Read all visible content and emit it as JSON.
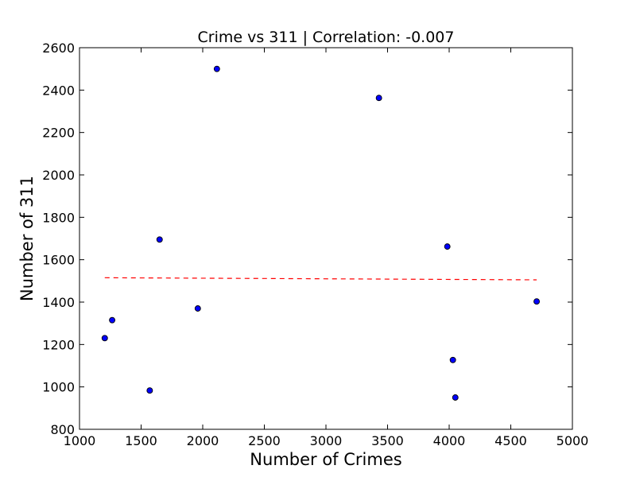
{
  "chart_data": {
    "type": "scatter",
    "title": "Crime vs 311 | Correlation: -0.007",
    "xlabel": "Number of Crimes",
    "ylabel": "Number of 311",
    "xlim": [
      1000,
      5000
    ],
    "ylim": [
      800,
      2600
    ],
    "x_ticks": [
      "1000",
      "1500",
      "2000",
      "2500",
      "3000",
      "3500",
      "4000",
      "4500",
      "5000"
    ],
    "y_ticks": [
      "800",
      "1000",
      "1200",
      "1400",
      "1600",
      "1800",
      "2000",
      "2200",
      "2400",
      "2600"
    ],
    "grid": false,
    "points": [
      {
        "x": 1205,
        "y": 1230
      },
      {
        "x": 1265,
        "y": 1315
      },
      {
        "x": 1570,
        "y": 983
      },
      {
        "x": 1650,
        "y": 1695
      },
      {
        "x": 1960,
        "y": 1370
      },
      {
        "x": 2115,
        "y": 2500
      },
      {
        "x": 3430,
        "y": 2363
      },
      {
        "x": 3985,
        "y": 1662
      },
      {
        "x": 4030,
        "y": 1127
      },
      {
        "x": 4050,
        "y": 950
      },
      {
        "x": 4710,
        "y": 1403
      }
    ],
    "trendline": {
      "x": [
        1205,
        4710
      ],
      "y": [
        1515,
        1505
      ]
    },
    "colors": {
      "points": "#0000ff",
      "point_edge": "#000000",
      "trendline": "#ff0000"
    }
  }
}
